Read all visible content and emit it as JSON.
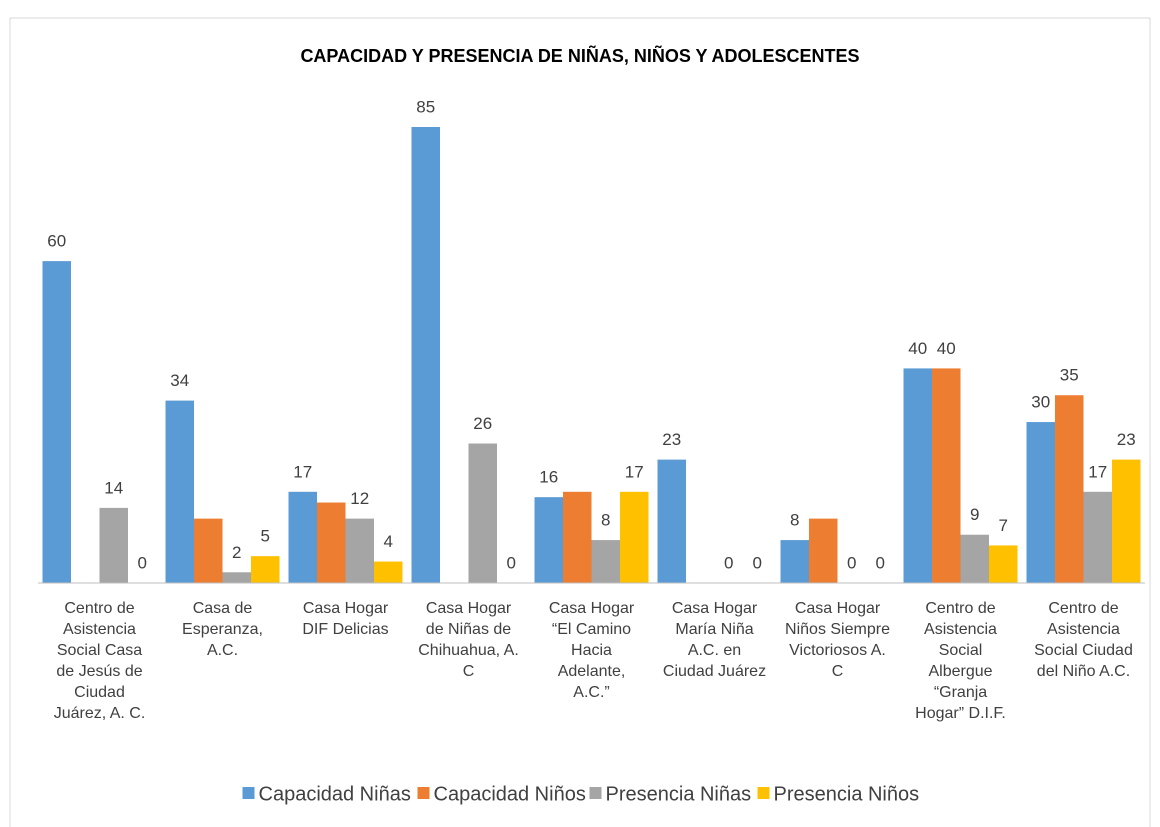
{
  "chart_data": {
    "type": "bar",
    "title": "CAPACIDAD Y PRESENCIA DE NIÑAS, NIÑOS Y ADOLESCENTES",
    "categories": [
      "Centro de\nAsistencia\nSocial Casa\nde Jesús de\nCiudad\nJuárez, A. C.",
      "Casa de\nEsperanza,\nA.C.",
      "Casa Hogar\nDIF Delicias",
      "Casa Hogar\nde Niñas de\nChihuahua, A.\nC",
      "Casa Hogar\n“El Camino\nHacia\nAdelante,\nA.C.”",
      "Casa Hogar\nMaría Niña\nA.C. en\nCiudad Juárez",
      "Casa Hogar\nNiños Siempre\nVictoriosos A.\nC",
      "Centro de\nAsistencia\nSocial\nAlbergue\n“Granja\nHogar” D.I.F.",
      "Centro de\nAsistencia\nSocial Ciudad\ndel Niño A.C."
    ],
    "series": [
      {
        "name": "Capacidad Niñas",
        "color": "#5b9bd5",
        "values": [
          60,
          34,
          17,
          85,
          16,
          23,
          8,
          40,
          30
        ],
        "value_labels": [
          "60",
          "34",
          "17",
          "85",
          "16",
          "23",
          "8",
          "40",
          "30"
        ]
      },
      {
        "name": "Capacidad Niños",
        "color": "#ed7d31",
        "values": [
          null,
          12,
          15,
          null,
          17,
          null,
          12,
          40,
          35
        ],
        "value_labels": [
          null,
          null,
          null,
          null,
          null,
          null,
          null,
          "40",
          "35"
        ]
      },
      {
        "name": "Presencia Niñas",
        "color": "#a5a5a5",
        "values": [
          14,
          2,
          12,
          26,
          8,
          0,
          0,
          9,
          17
        ],
        "value_labels": [
          "14",
          "2",
          "12",
          "26",
          "8",
          "0",
          "0",
          "9",
          "17"
        ]
      },
      {
        "name": "Presencia Niños",
        "color": "#ffc000",
        "values": [
          0,
          5,
          4,
          0,
          17,
          0,
          0,
          7,
          23
        ],
        "value_labels": [
          "0",
          "5",
          "4",
          "0",
          "17",
          "0",
          "0",
          "7",
          "23"
        ]
      }
    ],
    "ylim": [
      0,
      90
    ],
    "grid": false,
    "legend": "bottom"
  }
}
